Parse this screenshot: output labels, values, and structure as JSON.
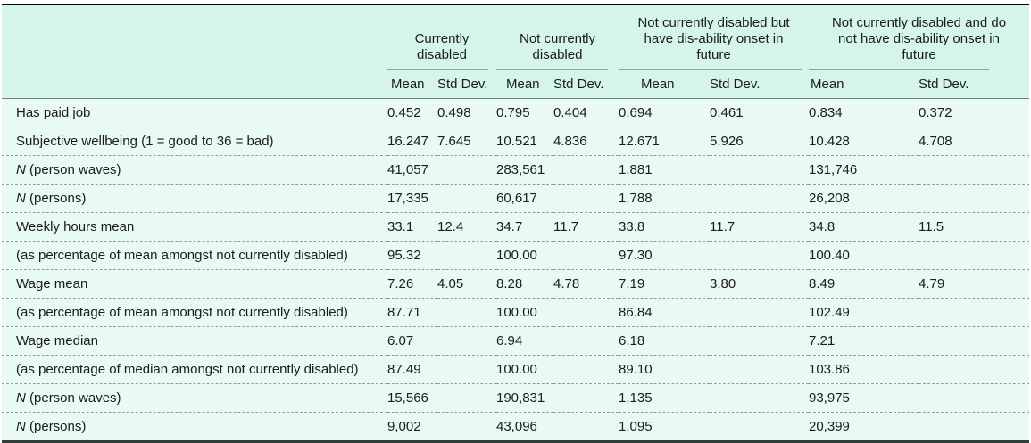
{
  "table": {
    "column_groups": [
      {
        "label": "Currently disabled"
      },
      {
        "label": "Not currently disabled"
      },
      {
        "label": "Not currently disabled but have dis-ability onset in future"
      },
      {
        "label": "Not currently disabled and do not have dis-ability onset in future"
      }
    ],
    "sub_header": {
      "mean": "Mean",
      "std": "Std Dev."
    },
    "rows": [
      {
        "prefix": "",
        "label": "Has paid job",
        "values": [
          "0.452",
          "0.498",
          "0.795",
          "0.404",
          "0.694",
          "0.461",
          "0.834",
          "0.372"
        ]
      },
      {
        "prefix": "",
        "label": "Subjective wellbeing (1 = good to 36 = bad)",
        "values": [
          "16.247",
          "7.645",
          "10.521",
          "4.836",
          "12.671",
          "5.926",
          "10.428",
          "4.708"
        ]
      },
      {
        "prefix": "N",
        "label": " (person waves)",
        "values": [
          "41,057",
          "",
          "283,561",
          "",
          "1,881",
          "",
          "131,746",
          ""
        ]
      },
      {
        "prefix": "N",
        "label": " (persons)",
        "values": [
          "17,335",
          "",
          "60,617",
          "",
          "1,788",
          "",
          "26,208",
          ""
        ]
      },
      {
        "prefix": "",
        "label": "Weekly hours mean",
        "values": [
          "33.1",
          "12.4",
          "34.7",
          "11.7",
          "33.8",
          "11.7",
          "34.8",
          "11.5"
        ]
      },
      {
        "prefix": "",
        "label": "(as percentage of mean amongst not currently disabled)",
        "values": [
          "95.32",
          "",
          "100.00",
          "",
          "97.30",
          "",
          "100.40",
          ""
        ]
      },
      {
        "prefix": "",
        "label": "Wage mean",
        "values": [
          "7.26",
          "4.05",
          "8.28",
          "4.78",
          "7.19",
          "3.80",
          "8.49",
          "4.79"
        ]
      },
      {
        "prefix": "",
        "label": "(as percentage of mean amongst not currently disabled)",
        "values": [
          "87.71",
          "",
          "100.00",
          "",
          "86.84",
          "",
          "102.49",
          ""
        ]
      },
      {
        "prefix": "",
        "label": "Wage median",
        "values": [
          "6.07",
          "",
          "6.94",
          "",
          "6.18",
          "",
          "7.21",
          ""
        ]
      },
      {
        "prefix": "",
        "label": "(as percentage of median amongst not currently disabled)",
        "values": [
          "87.49",
          "",
          "100.00",
          "",
          "89.10",
          "",
          "103.86",
          ""
        ]
      },
      {
        "prefix": "N",
        "label": " (person waves)",
        "values": [
          "15,566",
          "",
          "190,831",
          "",
          "1,135",
          "",
          "93,975",
          ""
        ]
      },
      {
        "prefix": "N",
        "label": " (persons)",
        "values": [
          "9,002",
          "",
          "43,096",
          "",
          "1,095",
          "",
          "20,399",
          ""
        ]
      }
    ],
    "colors": {
      "header_bg": "#d5f4ec",
      "body_bg": "#e9f9f4",
      "top_border": "#060606",
      "bottom_border": "#323e3b",
      "header_rule": "#70847f",
      "group_rule": "#8aa59e",
      "row_divider": "#8c9e99",
      "text": "#1b1b1b"
    }
  }
}
